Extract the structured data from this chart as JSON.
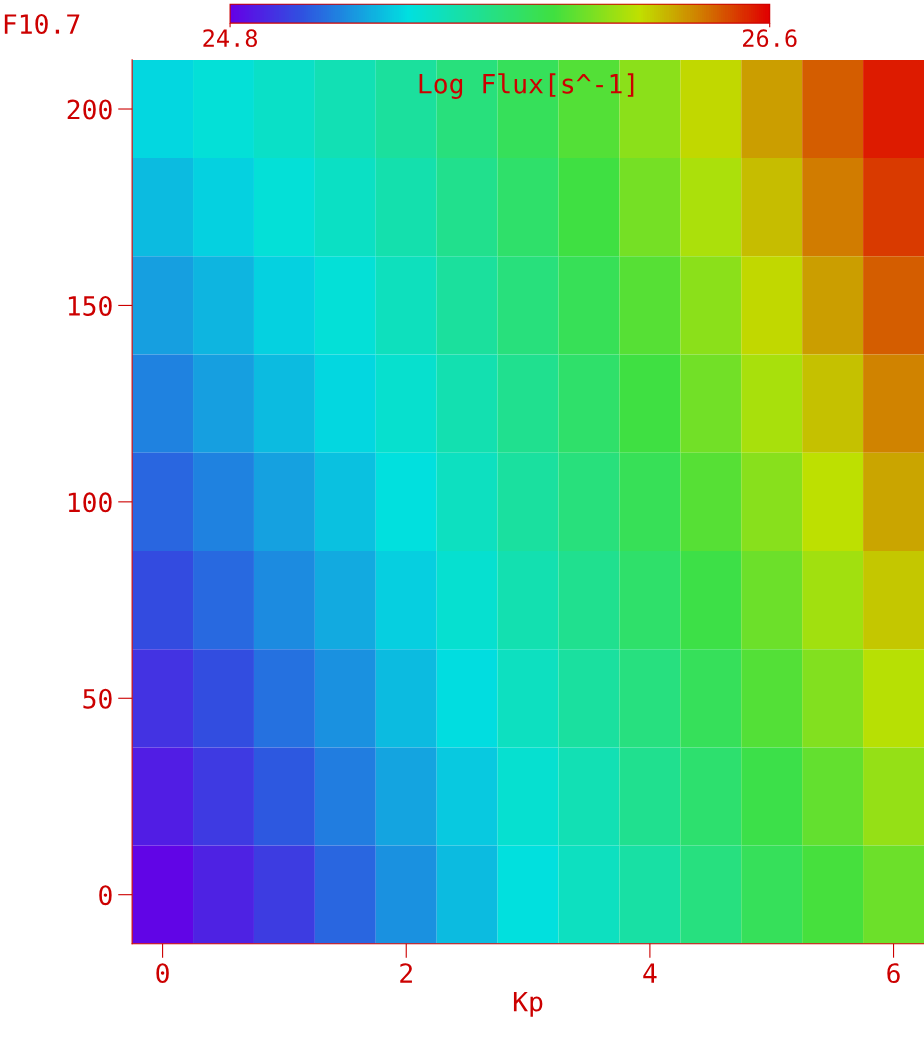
{
  "chart_data": {
    "type": "heatmap",
    "xlabel": "Kp",
    "ylabel": "F10.7",
    "clabel": "Log Flux[s^-1]",
    "categories": [
      "0",
      null,
      null,
      null,
      "2",
      null,
      null,
      null,
      "4",
      null,
      null,
      null,
      "6"
    ],
    "y_categories": [
      "200",
      null,
      "150",
      null,
      "100",
      null,
      "50",
      null,
      "0"
    ],
    "cells": [
      [
        25.37,
        25.42,
        25.47,
        25.53,
        25.6,
        25.7,
        25.8,
        25.92,
        26.05,
        26.18,
        26.3,
        26.43,
        26.55
      ],
      [
        25.3,
        25.36,
        25.42,
        25.48,
        25.55,
        25.65,
        25.75,
        25.87,
        26.0,
        26.12,
        26.24,
        26.37,
        26.49
      ],
      [
        25.23,
        25.29,
        25.36,
        25.42,
        25.5,
        25.6,
        25.7,
        25.81,
        25.93,
        26.05,
        26.18,
        26.3,
        26.43
      ],
      [
        25.16,
        25.23,
        25.3,
        25.37,
        25.45,
        25.54,
        25.64,
        25.75,
        25.87,
        25.99,
        26.11,
        26.23,
        26.36
      ],
      [
        25.09,
        25.16,
        25.24,
        25.32,
        25.4,
        25.49,
        25.59,
        25.7,
        25.81,
        25.93,
        26.04,
        26.16,
        26.29
      ],
      [
        25.02,
        25.1,
        25.18,
        25.26,
        25.35,
        25.44,
        25.54,
        25.64,
        25.75,
        25.86,
        25.98,
        26.1,
        26.22
      ],
      [
        24.95,
        25.03,
        25.12,
        25.2,
        25.3,
        25.39,
        25.49,
        25.59,
        25.69,
        25.8,
        25.92,
        26.03,
        26.15
      ],
      [
        24.89,
        24.97,
        25.06,
        25.15,
        25.25,
        25.34,
        25.44,
        25.53,
        25.64,
        25.74,
        25.85,
        25.96,
        26.07
      ],
      [
        24.82,
        24.9,
        24.98,
        25.09,
        25.2,
        25.3,
        25.4,
        25.49,
        25.58,
        25.69,
        25.8,
        25.89,
        25.98
      ]
    ],
    "clim": [
      24.8,
      26.6
    ],
    "cticks": [
      24.8,
      26.6
    ]
  }
}
